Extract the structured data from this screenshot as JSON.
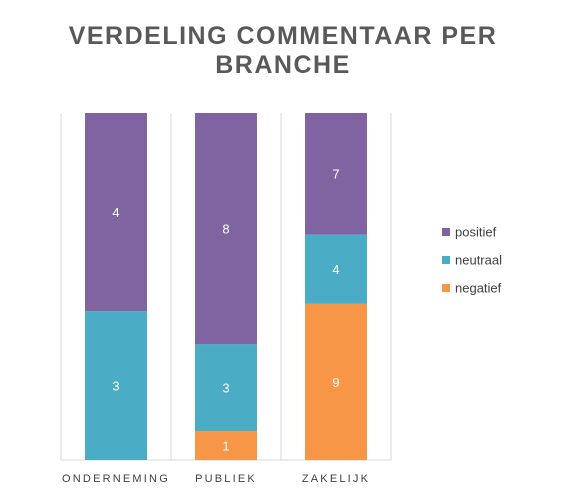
{
  "chart_data": {
    "type": "bar",
    "stacked": true,
    "title": "VERDELING COMMENTAAR PER BRANCHE",
    "categories": [
      "ONDERNEMING",
      "PUBLIEK",
      "ZAKELIJK"
    ],
    "series": [
      {
        "name": "negatief",
        "values": [
          0,
          1,
          9
        ],
        "color": "#F79646"
      },
      {
        "name": "neutraal",
        "values": [
          3,
          3,
          4
        ],
        "color": "#4BACC6"
      },
      {
        "name": "positief",
        "values": [
          4,
          8,
          7
        ],
        "color": "#8064A2"
      }
    ],
    "legend_order": [
      "positief",
      "neutraal",
      "negatief"
    ],
    "normalized_100_percent": true,
    "legend_position": "right",
    "grid": false
  }
}
